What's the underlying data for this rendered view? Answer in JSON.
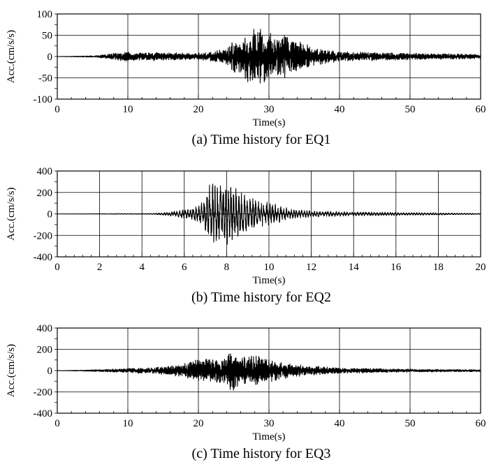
{
  "chart_data": [
    {
      "type": "line",
      "caption": "(a) Time history for EQ1",
      "xlabel": "Time(s)",
      "ylabel": "Acc.(cm/s/s)",
      "xlim": [
        0,
        60
      ],
      "ylim": [
        -100,
        100
      ],
      "xticks": [
        0,
        10,
        20,
        30,
        40,
        50,
        60
      ],
      "yticks": [
        -100,
        -50,
        0,
        50,
        100
      ],
      "grid": true,
      "series": [
        {
          "x": [
            0,
            5.5,
            8,
            10,
            12,
            15,
            18,
            20,
            22,
            24,
            25,
            26,
            27,
            28,
            29,
            29.5,
            30,
            31,
            32,
            33,
            35,
            37,
            40,
            45,
            50,
            55,
            60
          ],
          "amplitude": [
            0,
            2,
            8,
            12,
            10,
            10,
            9,
            9,
            12,
            22,
            40,
            50,
            62,
            68,
            65,
            72,
            60,
            45,
            55,
            45,
            30,
            20,
            12,
            10,
            8,
            7,
            5
          ]
        }
      ]
    },
    {
      "type": "line",
      "caption": "(b) Time history for EQ2",
      "xlabel": "Time(s)",
      "ylabel": "Acc.(cm/s/s)",
      "xlim": [
        0,
        20
      ],
      "ylim": [
        -400,
        400
      ],
      "xticks": [
        0,
        2,
        4,
        6,
        8,
        10,
        12,
        14,
        16,
        18,
        20
      ],
      "yticks": [
        -400,
        -200,
        0,
        200,
        400
      ],
      "grid": true,
      "series": [
        {
          "x": [
            0,
            4.6,
            5.5,
            6.2,
            6.8,
            7.2,
            7.5,
            7.8,
            8.2,
            8.6,
            9,
            9.5,
            10,
            10.5,
            11,
            12,
            13,
            14,
            16,
            18,
            20
          ],
          "amplitude": [
            0,
            5,
            25,
            50,
            100,
            300,
            280,
            320,
            280,
            230,
            170,
            130,
            110,
            80,
            50,
            30,
            25,
            20,
            15,
            10,
            5
          ]
        }
      ]
    },
    {
      "type": "line",
      "caption": "(c) Time history for EQ3",
      "xlabel": "Time(s)",
      "ylabel": "Acc.(cm/s/s)",
      "xlim": [
        0,
        60
      ],
      "ylim": [
        -400,
        400
      ],
      "xticks": [
        0,
        10,
        20,
        30,
        40,
        50,
        60
      ],
      "yticks": [
        -400,
        -200,
        0,
        200,
        400
      ],
      "grid": true,
      "series": [
        {
          "x": [
            0,
            6,
            10,
            15,
            18,
            20,
            22,
            24,
            24.5,
            25,
            26,
            28,
            30,
            32,
            35,
            40,
            45,
            50,
            55,
            60
          ],
          "amplitude": [
            0,
            10,
            20,
            35,
            70,
            110,
            120,
            130,
            200,
            220,
            140,
            150,
            110,
            80,
            50,
            30,
            20,
            15,
            12,
            10
          ]
        }
      ]
    }
  ]
}
